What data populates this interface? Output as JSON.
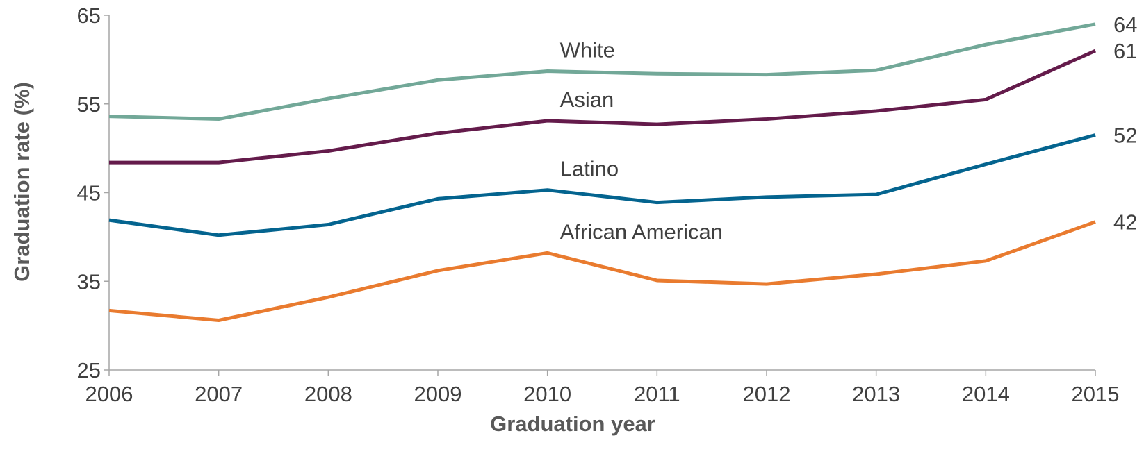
{
  "chart_data": {
    "type": "line",
    "title": "",
    "xlabel": "Graduation year",
    "ylabel": "Graduation rate (%)",
    "ylim": [
      25,
      65
    ],
    "yticks": [
      25,
      35,
      45,
      55,
      65
    ],
    "x": [
      2006,
      2007,
      2008,
      2009,
      2010,
      2011,
      2012,
      2013,
      2014,
      2015
    ],
    "grid": false,
    "legend": "none",
    "series": [
      {
        "name": "White",
        "color": "#72a898",
        "values": [
          53.6,
          53.3,
          55.6,
          57.7,
          58.7,
          58.4,
          58.3,
          58.8,
          61.7,
          64.0
        ],
        "end_label": "64"
      },
      {
        "name": "Asian",
        "color": "#641b4b",
        "values": [
          48.4,
          48.4,
          49.7,
          51.7,
          53.1,
          52.7,
          53.3,
          54.2,
          55.5,
          61.0
        ],
        "end_label": "61"
      },
      {
        "name": "Latino",
        "color": "#04648f",
        "values": [
          41.9,
          40.2,
          41.4,
          44.3,
          45.3,
          43.9,
          44.5,
          44.8,
          48.2,
          51.5
        ],
        "end_label": "52"
      },
      {
        "name": "African American",
        "color": "#e97b2f",
        "values": [
          31.7,
          30.6,
          33.2,
          36.2,
          38.2,
          35.1,
          34.7,
          35.8,
          37.3,
          41.7
        ],
        "end_label": "42"
      }
    ]
  }
}
